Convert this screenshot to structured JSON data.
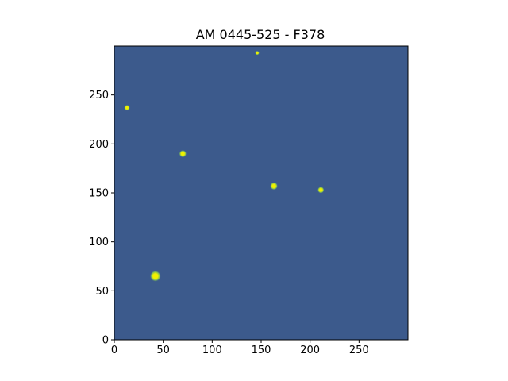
{
  "title": "AM 0445-525 - F378",
  "axes": {
    "x_range": [
      0,
      300
    ],
    "y_range": [
      0,
      300
    ],
    "x_ticks": [
      0,
      50,
      100,
      150,
      200,
      250
    ],
    "y_ticks": [
      0,
      50,
      100,
      150,
      200,
      250
    ],
    "y_origin": "lower"
  },
  "colors": {
    "background": "#3c5a8c",
    "star_core": "#f0f000",
    "star_halo": "#8fd44a",
    "axis": "#000000"
  },
  "sources": [
    {
      "x": 42,
      "y": 65,
      "brightness": 1.0
    },
    {
      "x": 70,
      "y": 190,
      "brightness": 0.55
    },
    {
      "x": 163,
      "y": 157,
      "brightness": 0.6
    },
    {
      "x": 211,
      "y": 153,
      "brightness": 0.45
    },
    {
      "x": 13,
      "y": 237,
      "brightness": 0.35
    },
    {
      "x": 146,
      "y": 293,
      "brightness": 0.15
    }
  ]
}
